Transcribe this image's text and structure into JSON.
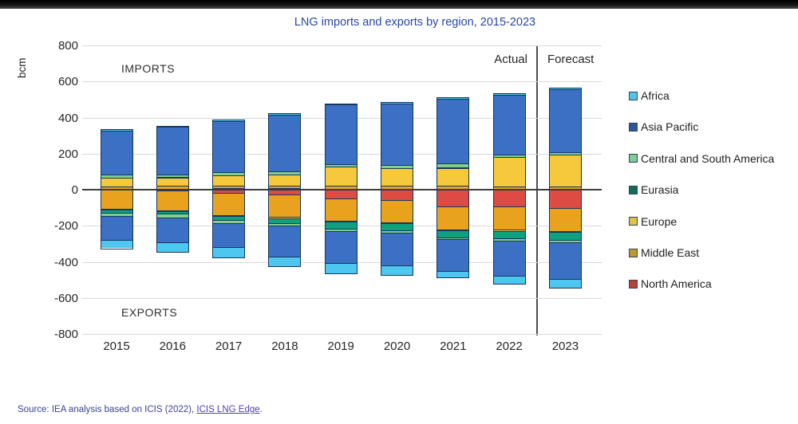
{
  "title": "LNG imports and exports by region, 2015-2023",
  "annotations": {
    "imports": "IMPORTS",
    "exports": "EXPORTS",
    "actual": "Actual",
    "forecast": "Forecast",
    "y_unit": "bcm"
  },
  "source": {
    "prefix": "Source: IEA analysis based on ICIS (2022), ",
    "link": "ICIS LNG Edge",
    "suffix": "."
  },
  "chart_data": {
    "type": "bar",
    "stacked": true,
    "unit": "bcm",
    "title": "LNG imports and exports by region, 2015-2023",
    "categories": [
      "2015",
      "2016",
      "2017",
      "2018",
      "2019",
      "2020",
      "2021",
      "2022",
      "2023"
    ],
    "yticks": [
      800,
      600,
      400,
      200,
      0,
      -200,
      -400,
      -600,
      -800
    ],
    "ylim": [
      -800,
      800
    ],
    "grid": true,
    "legend_position": "right",
    "positive_side_label": "IMPORTS",
    "negative_side_label": "EXPORTS",
    "divider_between": [
      "2022",
      "2023"
    ],
    "divider_labels": {
      "left": "Actual",
      "right": "Forecast"
    },
    "stack_order_from_zero": [
      "North America",
      "Middle East",
      "Europe",
      "Eurasia",
      "Central and South America",
      "Asia Pacific",
      "Africa"
    ],
    "series": [
      {
        "name": "Africa",
        "color": "#4DC6F0",
        "legend_color": "#55C3E8",
        "imports": [
          2,
          3,
          3,
          4,
          4,
          4,
          4,
          4,
          4
        ],
        "exports": [
          45,
          55,
          55,
          54,
          57,
          55,
          35,
          40,
          50
        ]
      },
      {
        "name": "Asia Pacific",
        "color": "#3C70C5",
        "legend_color": "#2F5597",
        "imports": [
          246,
          264,
          287,
          315,
          328,
          341,
          362,
          332,
          349
        ],
        "exports": [
          132,
          136,
          136,
          172,
          176,
          182,
          176,
          197,
          202
        ]
      },
      {
        "name": "Central and South America",
        "color": "#7ED08C",
        "legend_color": "#7FCE97",
        "imports": [
          14,
          14,
          16,
          18,
          14,
          16,
          22,
          14,
          12
        ],
        "exports": [
          20,
          19,
          17,
          15,
          15,
          12,
          10,
          12,
          12
        ]
      },
      {
        "name": "Eurasia",
        "color": "#0FA080",
        "legend_color": "#0E6E58",
        "imports": [
          1,
          1,
          1,
          1,
          1,
          1,
          1,
          1,
          1
        ],
        "exports": [
          15,
          15,
          20,
          26,
          38,
          40,
          38,
          42,
          45
        ]
      },
      {
        "name": "Europe",
        "color": "#F5C93B",
        "legend_color": "#E3C343",
        "imports": [
          51,
          48,
          55,
          60,
          105,
          95,
          100,
          160,
          175
        ],
        "exports": [
          6,
          6,
          6,
          6,
          6,
          6,
          6,
          6,
          6
        ]
      },
      {
        "name": "Middle East",
        "color": "#E8A21D",
        "legend_color": "#C2992B",
        "imports": [
          10,
          14,
          16,
          15,
          17,
          17,
          15,
          14,
          14
        ],
        "exports": [
          106,
          110,
          125,
          125,
          125,
          120,
          125,
          128,
          130
        ]
      },
      {
        "name": "North America",
        "color": "#DD4B43",
        "legend_color": "#BC4035",
        "imports": [
          6,
          6,
          7,
          7,
          6,
          6,
          6,
          5,
          5
        ],
        "exports": [
          1,
          4,
          16,
          27,
          48,
          60,
          95,
          95,
          100
        ]
      }
    ],
    "totals": {
      "imports": [
        330,
        350,
        385,
        420,
        475,
        480,
        510,
        530,
        560
      ],
      "exports": [
        325,
        345,
        375,
        425,
        465,
        475,
        485,
        520,
        545
      ]
    }
  }
}
